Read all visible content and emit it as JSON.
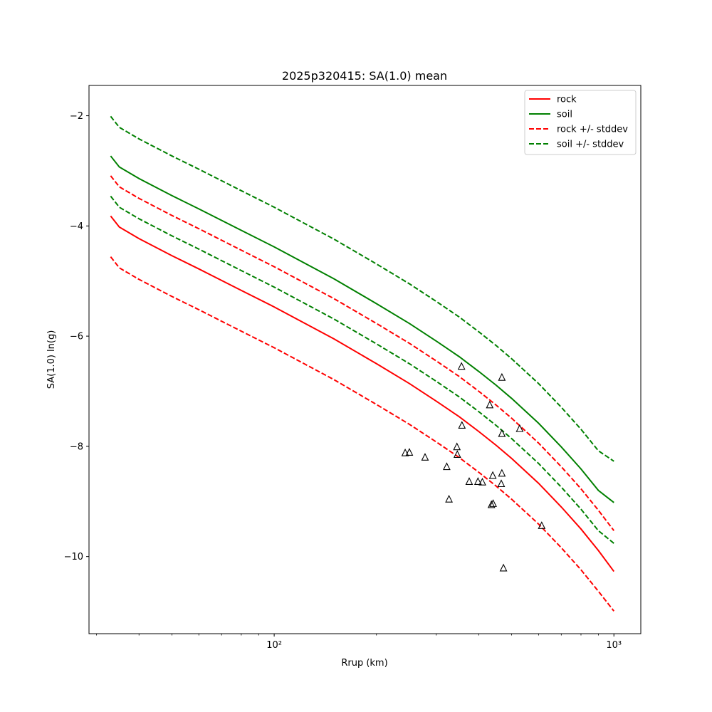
{
  "chart_data": {
    "type": "line",
    "title": "2025p320415: SA(1.0) mean",
    "xlabel": "Rrup (km)",
    "ylabel": "SA(1.0) ln(g)",
    "xscale": "log",
    "xlim": [
      28.5,
      1200
    ],
    "ylim": [
      -11.4,
      -1.45
    ],
    "y_ticks": [
      -10,
      -8,
      -6,
      -4,
      -2
    ],
    "y_tick_labels": [
      "−10",
      "−8",
      "−6",
      "−4",
      "−2"
    ],
    "x_ticks": [
      100,
      1000
    ],
    "x_tick_labels": [
      "10²",
      "10³"
    ],
    "grid": false,
    "legend_position": "top-right",
    "x": [
      33,
      35,
      40,
      50,
      60,
      80,
      100,
      150,
      200,
      250,
      300,
      350,
      400,
      450,
      500,
      600,
      700,
      800,
      900,
      1000
    ],
    "series": [
      {
        "name": "rock",
        "style": "solid",
        "color": "#ff0000",
        "values": [
          -3.82,
          -4.02,
          -4.23,
          -4.54,
          -4.78,
          -5.17,
          -5.47,
          -6.05,
          -6.5,
          -6.86,
          -7.18,
          -7.46,
          -7.73,
          -7.98,
          -8.22,
          -8.67,
          -9.1,
          -9.5,
          -9.89,
          -10.27
        ]
      },
      {
        "name": "soil",
        "style": "solid",
        "color": "#008000",
        "values": [
          -2.73,
          -2.93,
          -3.14,
          -3.45,
          -3.69,
          -4.08,
          -4.38,
          -4.96,
          -5.41,
          -5.77,
          -6.09,
          -6.37,
          -6.64,
          -6.89,
          -7.13,
          -7.58,
          -8.01,
          -8.41,
          -8.8,
          -9.02
        ]
      },
      {
        "name": "rock +/- stddev",
        "style": "dashed",
        "color": "#ff0000",
        "values": [
          -3.09,
          -3.29,
          -3.5,
          -3.81,
          -4.05,
          -4.44,
          -4.74,
          -5.32,
          -5.77,
          -6.13,
          -6.45,
          -6.73,
          -7.0,
          -7.25,
          -7.49,
          -7.94,
          -8.37,
          -8.77,
          -9.16,
          -9.53
        ]
      },
      {
        "name": "",
        "style": "dashed",
        "color": "#ff0000",
        "values": [
          -4.56,
          -4.76,
          -4.97,
          -5.28,
          -5.52,
          -5.91,
          -6.21,
          -6.79,
          -7.24,
          -7.6,
          -7.92,
          -8.2,
          -8.47,
          -8.72,
          -8.96,
          -9.41,
          -9.84,
          -10.24,
          -10.63,
          -10.99
        ]
      },
      {
        "name": "soil +/- stddev",
        "style": "dashed",
        "color": "#008000",
        "values": [
          -2.01,
          -2.21,
          -2.42,
          -2.73,
          -2.97,
          -3.36,
          -3.66,
          -4.24,
          -4.69,
          -5.05,
          -5.37,
          -5.65,
          -5.92,
          -6.17,
          -6.41,
          -6.86,
          -7.29,
          -7.69,
          -8.08,
          -8.27
        ]
      },
      {
        "name": "",
        "style": "dashed",
        "color": "#008000",
        "values": [
          -3.46,
          -3.66,
          -3.87,
          -4.18,
          -4.42,
          -4.81,
          -5.11,
          -5.69,
          -6.14,
          -6.5,
          -6.82,
          -7.1,
          -7.37,
          -7.62,
          -7.86,
          -8.31,
          -8.74,
          -9.14,
          -9.53,
          -9.76
        ]
      }
    ],
    "observations": {
      "marker": "triangle",
      "x": [
        356,
        468,
        431,
        357,
        468,
        528,
        243,
        250,
        278,
        345,
        346,
        322,
        375,
        398,
        410,
        440,
        468,
        466,
        327,
        436,
        441,
        613,
        473
      ],
      "y": [
        -6.55,
        -6.75,
        -7.25,
        -7.62,
        -7.77,
        -7.68,
        -8.12,
        -8.11,
        -8.2,
        -8.01,
        -8.15,
        -8.37,
        -8.64,
        -8.64,
        -8.65,
        -8.53,
        -8.49,
        -8.68,
        -8.96,
        -9.06,
        -9.04,
        -9.44,
        -10.21
      ]
    }
  }
}
